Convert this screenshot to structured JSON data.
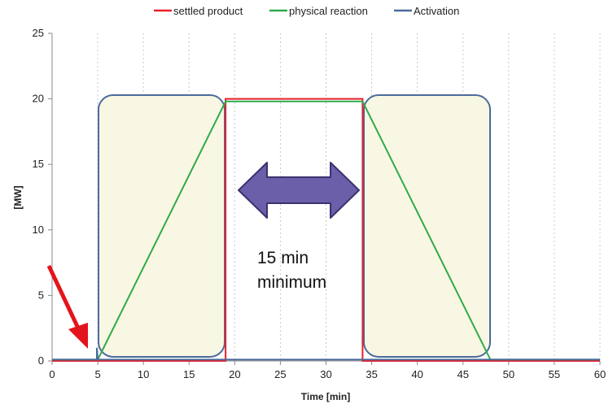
{
  "chart_data": {
    "type": "line",
    "xlabel": "Time [min]",
    "ylabel": "[MW]",
    "xlim": [
      0,
      60
    ],
    "ylim": [
      0,
      25
    ],
    "x_ticks": [
      0,
      5,
      10,
      15,
      20,
      25,
      30,
      35,
      40,
      45,
      50,
      55,
      60
    ],
    "y_ticks": [
      0,
      5,
      10,
      15,
      20,
      25
    ],
    "grid": "vertical dotted",
    "legend_position": "top",
    "series": [
      {
        "name": "settled product",
        "color": "#e8202a",
        "points": [
          [
            0,
            0
          ],
          [
            19,
            0
          ],
          [
            19,
            20
          ],
          [
            34,
            20
          ],
          [
            34,
            0
          ],
          [
            60,
            0
          ]
        ]
      },
      {
        "name": "physical reaction",
        "color": "#2faa4a",
        "points": [
          [
            0,
            0.1
          ],
          [
            5,
            0.1
          ],
          [
            19,
            19.8
          ],
          [
            34,
            19.8
          ],
          [
            48,
            0.1
          ],
          [
            60,
            0.1
          ]
        ]
      },
      {
        "name": "Activation",
        "color": "#4a6a9a",
        "points": [
          [
            0,
            0.1
          ],
          [
            4.9,
            0.1
          ],
          [
            4.9,
            1
          ],
          [
            5,
            0.1
          ],
          [
            60,
            0.1
          ]
        ]
      }
    ],
    "annotations": {
      "note_line1": "15 min",
      "note_line2": "minimum"
    },
    "shapes": {
      "highlight_fill": "#f8f7e3",
      "highlight_stroke": "#4a6a9a",
      "double_arrow_fill": "#6a5fa8",
      "double_arrow_stroke": "#3a3270",
      "pointer_arrow_color": "#e3141b"
    }
  }
}
